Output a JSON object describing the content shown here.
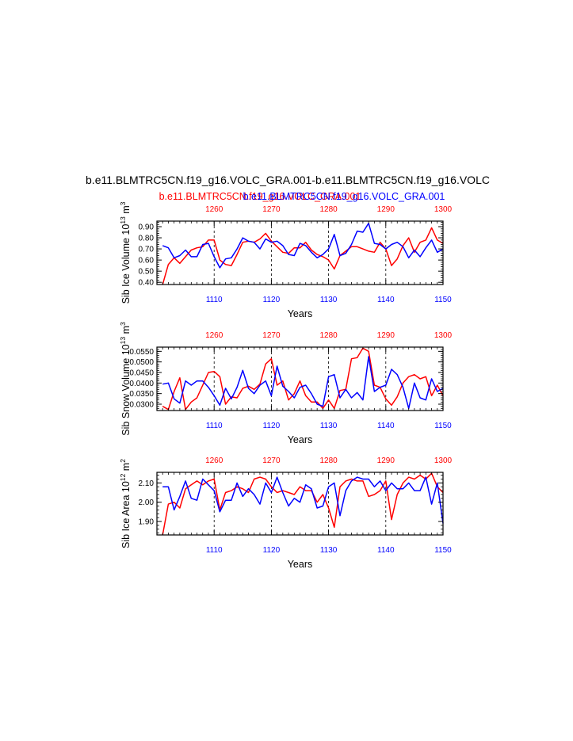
{
  "title": "b.e11.BLMTRC5CN.f19_g16.VOLC_GRA.001-b.e11.BLMTRC5CN.f19_g16.VOLC",
  "legend": {
    "red_label": "b.e11.BLMTRC5CN.f19_g16.VOLC_GRA.001",
    "blue_label": "b.e11.BLMTRC5CN.f19_g16.VOLC_GRA.001"
  },
  "colors": {
    "red": "#ff0000",
    "blue": "#0000ff",
    "axis": "#000000"
  },
  "chart_data": [
    {
      "type": "line",
      "ylabel": "Sib Ice Volume 10",
      "ylabel_exp": "13",
      "ylabel_unit": " m",
      "ylabel_unit_exp": "3",
      "xlabel": "Years",
      "ylim": [
        0.38,
        0.95
      ],
      "yticks": [
        0.4,
        0.5,
        0.6,
        0.7,
        0.8,
        0.9
      ],
      "ytick_labels": [
        "0.40",
        "0.50",
        "0.60",
        "0.70",
        "0.80",
        "0.90"
      ],
      "x_bottom": {
        "range": [
          1100,
          1150
        ],
        "ticks": [
          1110,
          1120,
          1130,
          1140,
          1150
        ],
        "labels": [
          "1110",
          "1120",
          "1130",
          "1140",
          "1150"
        ]
      },
      "x_top": {
        "range": [
          1250,
          1300
        ],
        "ticks": [
          1260,
          1270,
          1280,
          1290,
          1300
        ],
        "labels": [
          "1260",
          "1270",
          "1280",
          "1290",
          "1300"
        ]
      },
      "grid_x": [
        1110,
        1120,
        1130,
        1140
      ],
      "series": [
        {
          "color": "red",
          "axis": "top",
          "x_start": 1251,
          "values": [
            0.38,
            0.56,
            0.62,
            0.57,
            0.63,
            0.69,
            0.71,
            0.72,
            0.78,
            0.78,
            0.6,
            0.56,
            0.55,
            0.65,
            0.76,
            0.77,
            0.76,
            0.79,
            0.84,
            0.77,
            0.72,
            0.67,
            0.66,
            0.71,
            0.71,
            0.76,
            0.69,
            0.65,
            0.63,
            0.6,
            0.52,
            0.64,
            0.68,
            0.72,
            0.72,
            0.7,
            0.68,
            0.67,
            0.76,
            0.7,
            0.55,
            0.61,
            0.73,
            0.8,
            0.67,
            0.76,
            0.78,
            0.89,
            0.78,
            0.75
          ]
        },
        {
          "color": "blue",
          "axis": "bottom",
          "x_start": 1101,
          "values": [
            0.73,
            0.71,
            0.62,
            0.64,
            0.69,
            0.63,
            0.63,
            0.74,
            0.75,
            0.63,
            0.53,
            0.61,
            0.62,
            0.7,
            0.8,
            0.77,
            0.76,
            0.7,
            0.79,
            0.76,
            0.77,
            0.73,
            0.65,
            0.64,
            0.75,
            0.73,
            0.67,
            0.62,
            0.65,
            0.7,
            0.83,
            0.64,
            0.66,
            0.74,
            0.86,
            0.85,
            0.93,
            0.75,
            0.74,
            0.7,
            0.74,
            0.76,
            0.72,
            0.62,
            0.69,
            0.63,
            0.71,
            0.78,
            0.67,
            0.7
          ]
        }
      ]
    },
    {
      "type": "line",
      "ylabel": "Sib Snow Volume 10",
      "ylabel_exp": "13",
      "ylabel_unit": " m",
      "ylabel_unit_exp": "3",
      "xlabel": "Years",
      "ylim": [
        0.027,
        0.057
      ],
      "yticks": [
        0.03,
        0.035,
        0.04,
        0.045,
        0.05,
        0.055
      ],
      "ytick_labels": [
        "0.0300",
        "0.0350",
        "0.0400",
        "0.0450",
        "0.0500",
        "0.0550"
      ],
      "x_bottom": {
        "range": [
          1100,
          1150
        ],
        "ticks": [
          1110,
          1120,
          1130,
          1140,
          1150
        ],
        "labels": [
          "1110",
          "1120",
          "1130",
          "1140",
          "1150"
        ]
      },
      "x_top": {
        "range": [
          1250,
          1300
        ],
        "ticks": [
          1260,
          1270,
          1280,
          1290,
          1300
        ],
        "labels": [
          "1260",
          "1270",
          "1280",
          "1290",
          "1300"
        ]
      },
      "grid_x": [
        1110,
        1120,
        1130,
        1140
      ],
      "series": [
        {
          "color": "red",
          "axis": "top",
          "x_start": 1251,
          "values": [
            0.029,
            0.0275,
            0.036,
            0.0425,
            0.0275,
            0.031,
            0.033,
            0.039,
            0.045,
            0.0455,
            0.043,
            0.03,
            0.0335,
            0.033,
            0.0375,
            0.0385,
            0.037,
            0.0395,
            0.049,
            0.0515,
            0.039,
            0.041,
            0.032,
            0.035,
            0.041,
            0.034,
            0.031,
            0.031,
            0.028,
            0.032,
            0.028,
            0.0365,
            0.037,
            0.0515,
            0.052,
            0.0565,
            0.055,
            0.039,
            0.038,
            0.0325,
            0.0295,
            0.0335,
            0.04,
            0.043,
            0.044,
            0.042,
            0.043,
            0.034,
            0.039,
            0.034
          ]
        },
        {
          "color": "blue",
          "axis": "bottom",
          "x_start": 1101,
          "values": [
            0.0395,
            0.04,
            0.0325,
            0.0305,
            0.041,
            0.039,
            0.041,
            0.041,
            0.038,
            0.034,
            0.0295,
            0.0375,
            0.0325,
            0.038,
            0.046,
            0.0375,
            0.035,
            0.039,
            0.041,
            0.034,
            0.048,
            0.0385,
            0.036,
            0.033,
            0.038,
            0.039,
            0.035,
            0.03,
            0.029,
            0.043,
            0.044,
            0.033,
            0.037,
            0.033,
            0.0355,
            0.032,
            0.0525,
            0.036,
            0.038,
            0.039,
            0.0465,
            0.044,
            0.038,
            0.028,
            0.04,
            0.033,
            0.032,
            0.042,
            0.036,
            0.0375
          ]
        }
      ]
    },
    {
      "type": "line",
      "ylabel": "Sib Ice Area 10",
      "ylabel_exp": "12",
      "ylabel_unit": " m",
      "ylabel_unit_exp": "2",
      "xlabel": "Years",
      "ylim": [
        1.83,
        2.155
      ],
      "yticks": [
        1.9,
        2.0,
        2.1
      ],
      "ytick_labels": [
        "1.90",
        "2.00",
        "2.10"
      ],
      "x_bottom": {
        "range": [
          1100,
          1150
        ],
        "ticks": [
          1110,
          1120,
          1130,
          1140,
          1150
        ],
        "labels": [
          "1110",
          "1120",
          "1130",
          "1140",
          "1150"
        ]
      },
      "x_top": {
        "range": [
          1250,
          1300
        ],
        "ticks": [
          1260,
          1270,
          1280,
          1290,
          1300
        ],
        "labels": [
          "1260",
          "1270",
          "1280",
          "1290",
          "1300"
        ]
      },
      "grid_x": [
        1110,
        1120,
        1130,
        1140
      ],
      "series": [
        {
          "color": "red",
          "axis": "top",
          "x_start": 1251,
          "values": [
            1.83,
            1.99,
            2.0,
            1.97,
            2.07,
            2.09,
            2.11,
            2.09,
            2.11,
            2.12,
            1.96,
            2.05,
            2.06,
            2.08,
            2.07,
            2.05,
            2.12,
            2.13,
            2.12,
            2.08,
            2.05,
            2.06,
            2.05,
            2.04,
            2.08,
            2.06,
            2.06,
            2.0,
            2.04,
            1.97,
            1.87,
            2.08,
            2.11,
            2.12,
            2.11,
            2.11,
            2.03,
            2.04,
            2.06,
            2.11,
            1.91,
            2.04,
            2.1,
            2.13,
            2.12,
            2.14,
            2.12,
            2.15,
            2.08,
            2.05
          ]
        },
        {
          "color": "blue",
          "axis": "bottom",
          "x_start": 1101,
          "values": [
            2.08,
            2.08,
            1.96,
            2.03,
            2.11,
            2.02,
            2.01,
            2.12,
            2.09,
            2.06,
            1.95,
            2.01,
            2.01,
            2.1,
            2.03,
            2.07,
            2.04,
            1.99,
            2.1,
            2.05,
            2.13,
            2.05,
            1.98,
            2.02,
            2.0,
            2.09,
            2.07,
            1.97,
            1.98,
            2.08,
            2.1,
            1.93,
            2.06,
            2.11,
            2.13,
            2.12,
            2.12,
            2.08,
            2.11,
            2.06,
            2.1,
            2.07,
            2.07,
            2.1,
            2.06,
            2.06,
            2.13,
            1.99,
            2.1,
            1.89
          ]
        }
      ]
    }
  ]
}
